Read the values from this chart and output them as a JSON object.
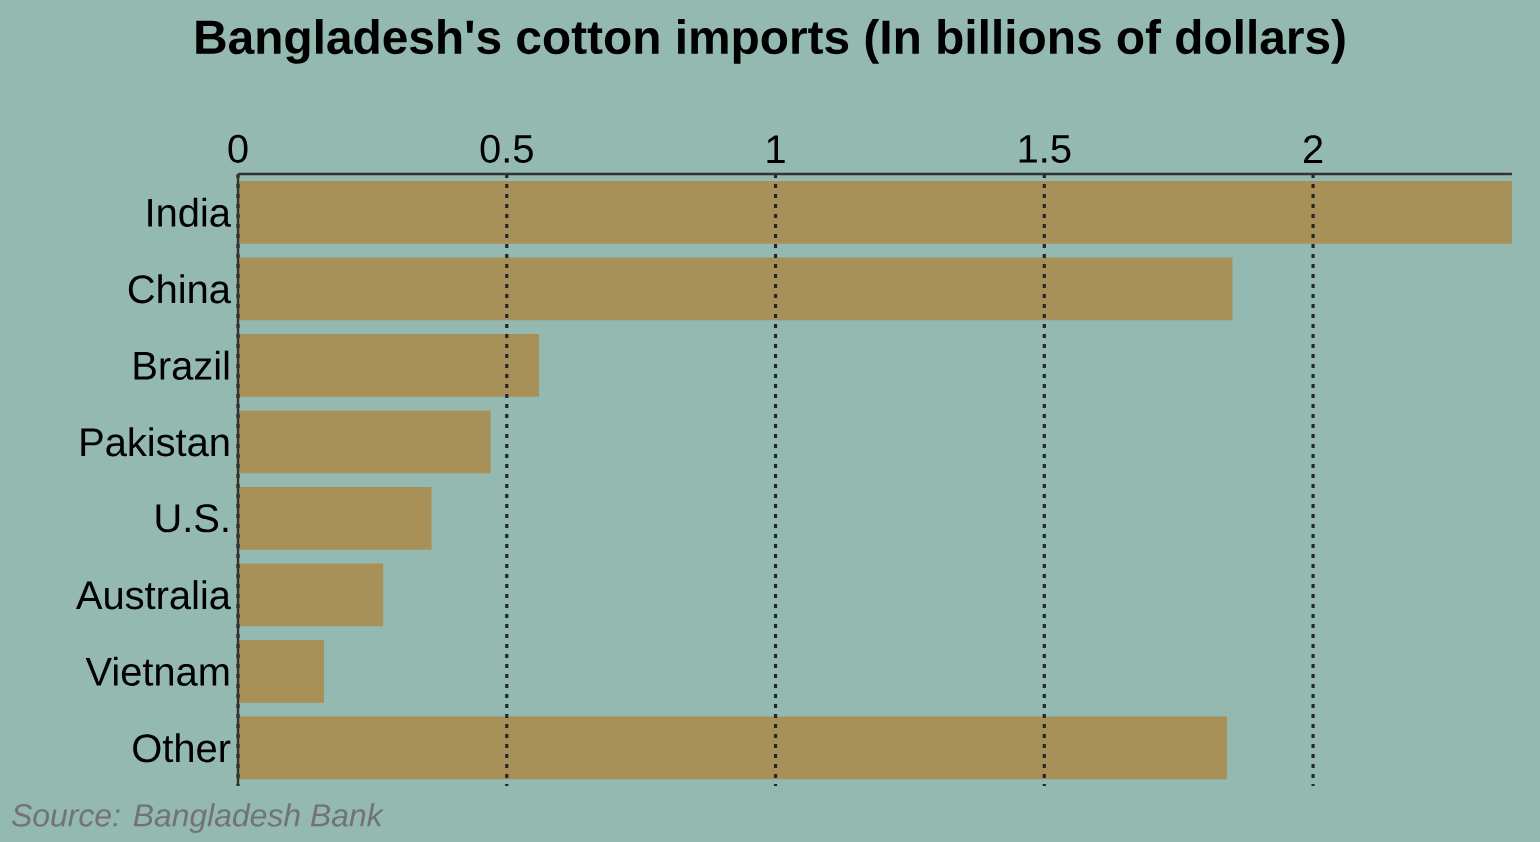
{
  "chart_data": {
    "type": "bar",
    "orientation": "horizontal",
    "title": "Bangladesh's cotton imports (In billions of dollars)",
    "categories": [
      "India",
      "China",
      "Brazil",
      "Pakistan",
      "U.S.",
      "Australia",
      "Vietnam",
      "Other"
    ],
    "values": [
      2.37,
      1.85,
      0.56,
      0.47,
      0.36,
      0.27,
      0.16,
      1.84
    ],
    "color": "#a89158",
    "xlim": [
      0,
      2.37
    ],
    "xticks": [
      0,
      0.5,
      1,
      1.5,
      2
    ],
    "grid": "x",
    "annotations": [
      "Source: Bangladesh Bank"
    ]
  }
}
